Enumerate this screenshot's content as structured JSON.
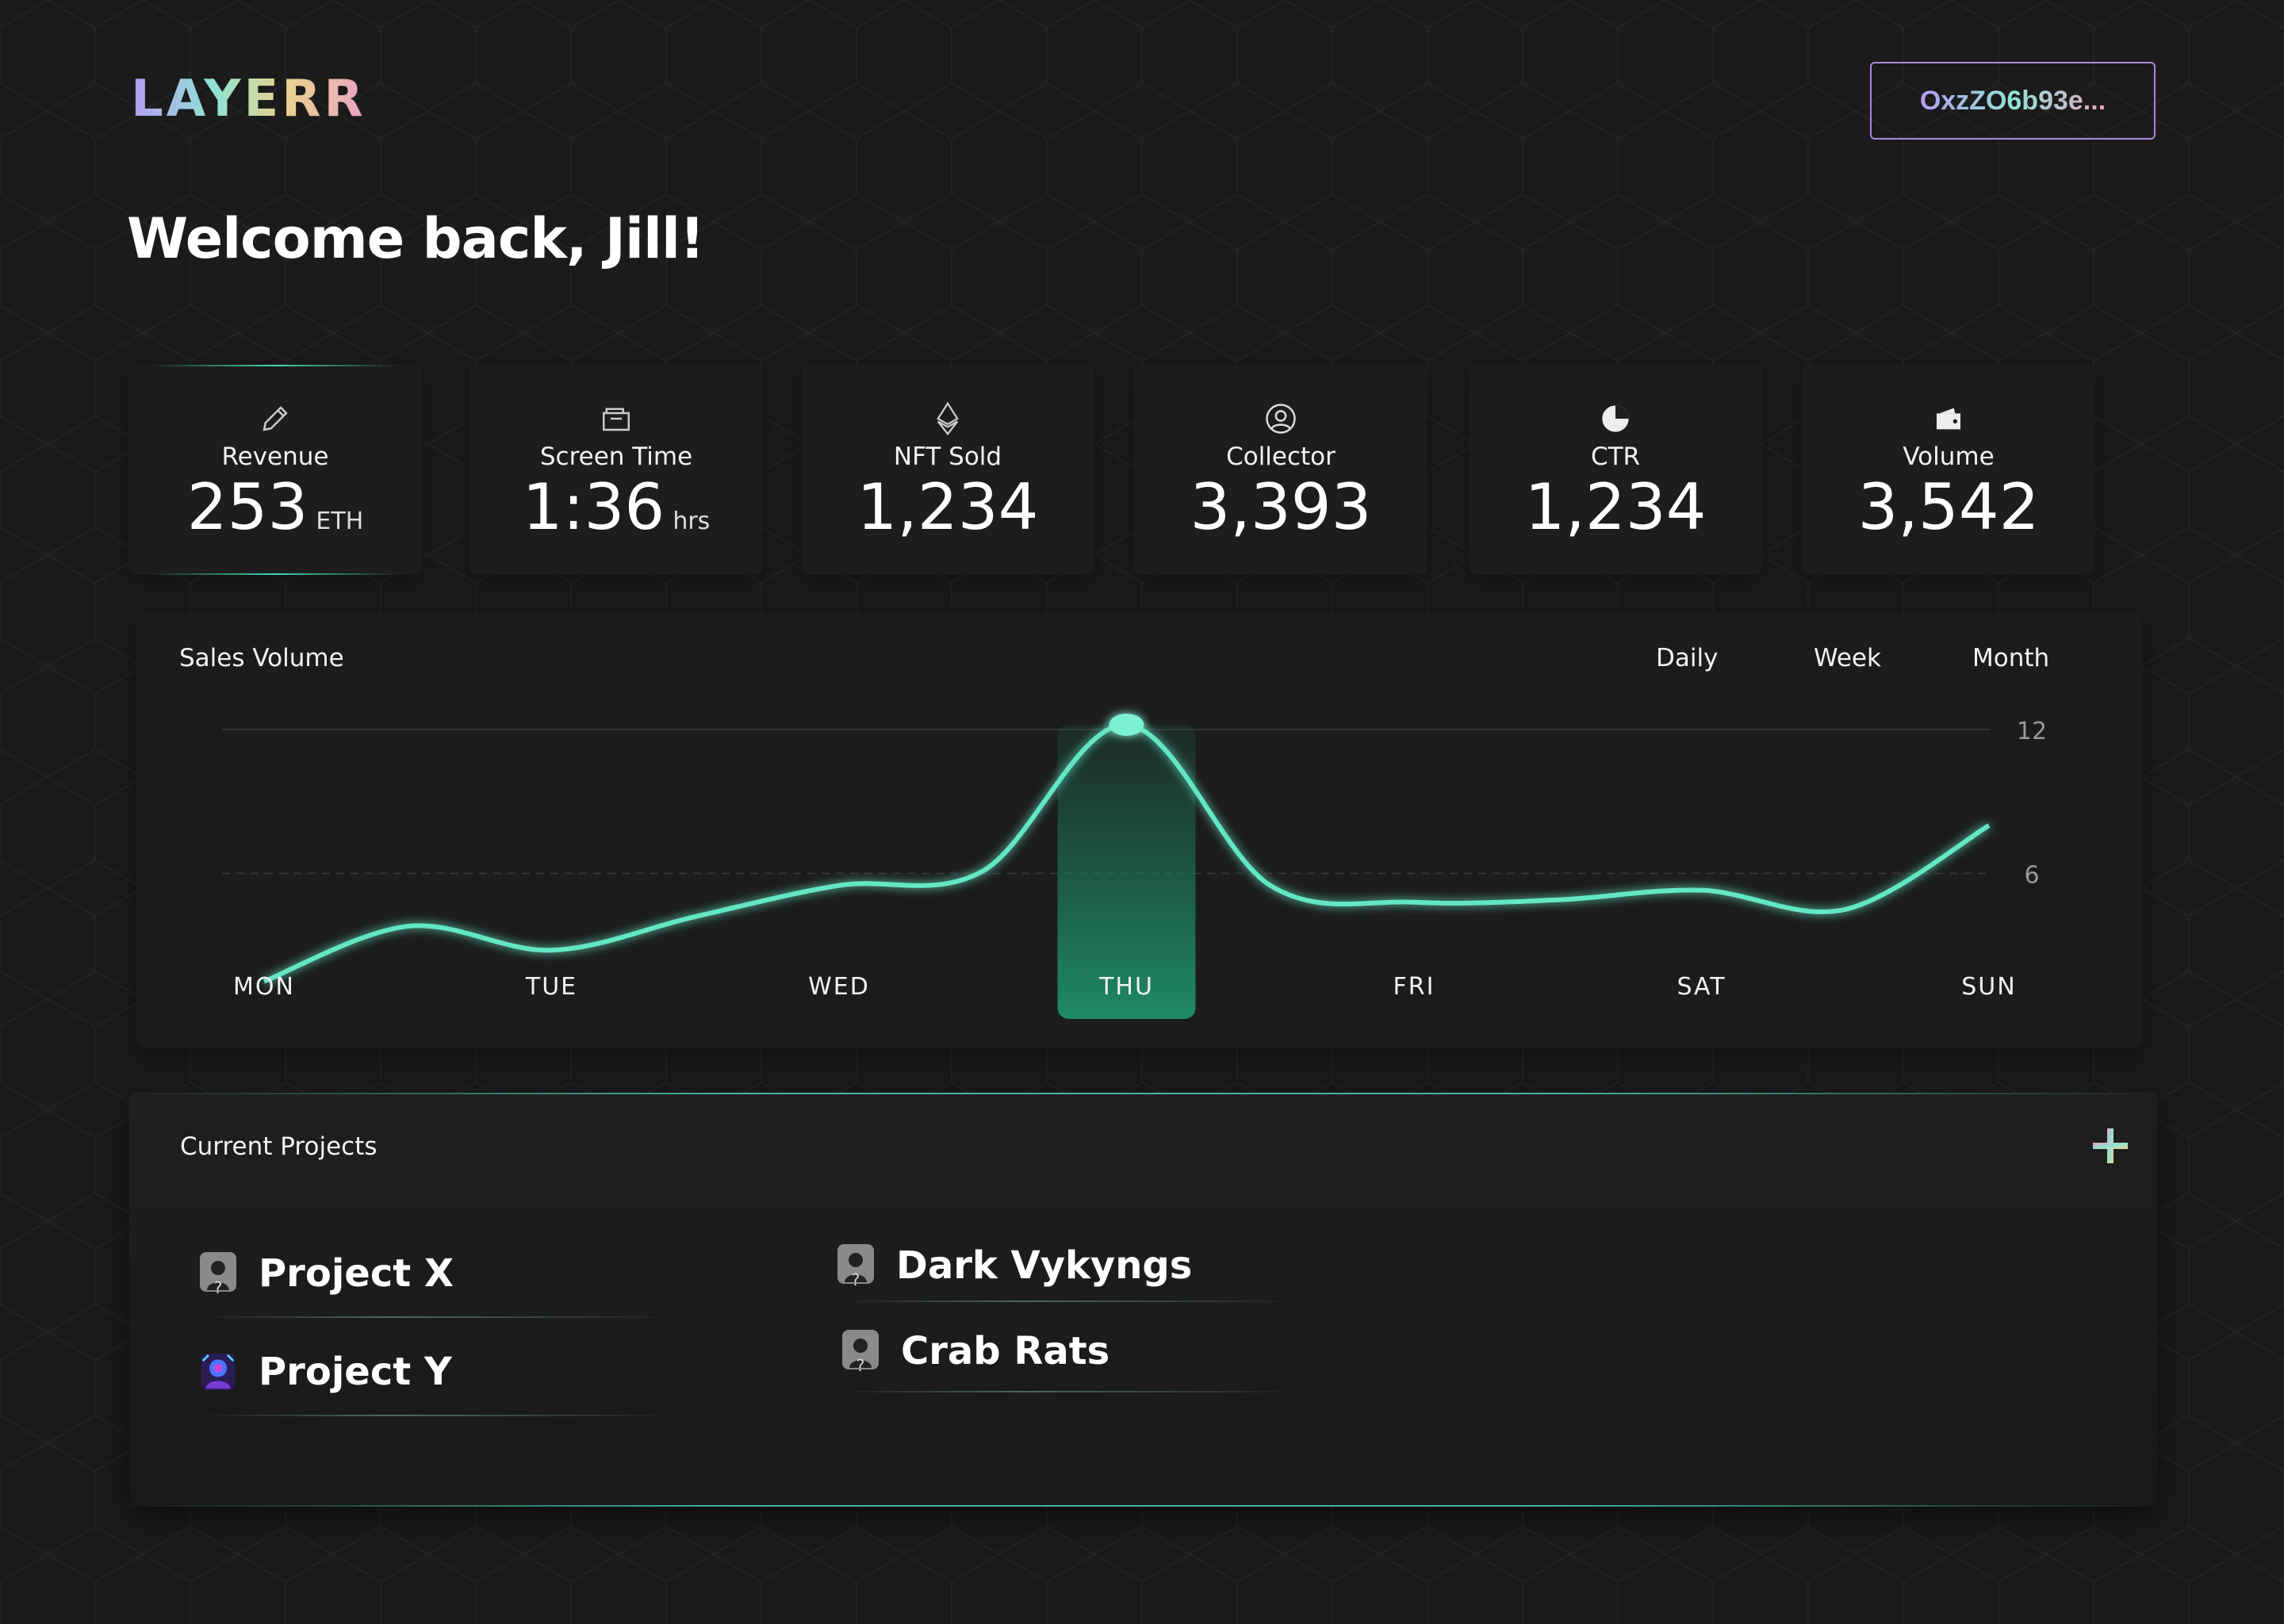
{
  "header": {
    "logo_text": "LAYERR",
    "wallet_address": "OxzZO6b93e..."
  },
  "welcome": "Welcome back, Jill!",
  "stats": [
    {
      "label": "Revenue",
      "value": "253",
      "unit": "ETH",
      "icon": "pencil-icon"
    },
    {
      "label": "Screen Time",
      "value": "1:36",
      "unit": "hrs",
      "icon": "folder-icon"
    },
    {
      "label": "NFT Sold",
      "value": "1,234",
      "unit": "",
      "icon": "ethereum-icon"
    },
    {
      "label": "Collector",
      "value": "3,393",
      "unit": "",
      "icon": "user-circle-icon"
    },
    {
      "label": "CTR",
      "value": "1,234",
      "unit": "",
      "icon": "pie-chart-icon"
    },
    {
      "label": "Volume",
      "value": "3,542",
      "unit": "",
      "icon": "wallet-icon"
    }
  ],
  "sales": {
    "title": "Sales Volume",
    "tabs": [
      "Daily",
      "Week",
      "Month"
    ],
    "selected_day": "THU"
  },
  "chart_data": {
    "type": "line",
    "title": "Sales Volume",
    "categories": [
      "MON",
      "TUE",
      "WED",
      "THU",
      "FRI",
      "SAT",
      "SUN"
    ],
    "x": [
      0,
      0.5,
      1,
      1.5,
      2,
      2.5,
      3,
      3.5,
      4,
      4.5,
      5,
      5.5,
      6
    ],
    "values": [
      1.5,
      3.8,
      2.8,
      4.2,
      5.5,
      6.1,
      12.2,
      5.5,
      4.8,
      4.9,
      5.3,
      4.5,
      8
    ],
    "ylim": [
      0,
      12
    ],
    "yticks": [
      "12",
      "6"
    ],
    "grid": true,
    "accent_color": "#63e6c4",
    "highlight_color": "#1d7a5e"
  },
  "projects": {
    "title": "Current Projects",
    "items": [
      {
        "name": "Project X",
        "icon": "placeholder-avatar-icon"
      },
      {
        "name": "Project Y",
        "icon": "project-avatar-icon"
      },
      {
        "name": "Dark Vykyngs",
        "icon": "placeholder-avatar-icon"
      },
      {
        "name": "Crab Rats",
        "icon": "placeholder-avatar-icon"
      }
    ]
  }
}
